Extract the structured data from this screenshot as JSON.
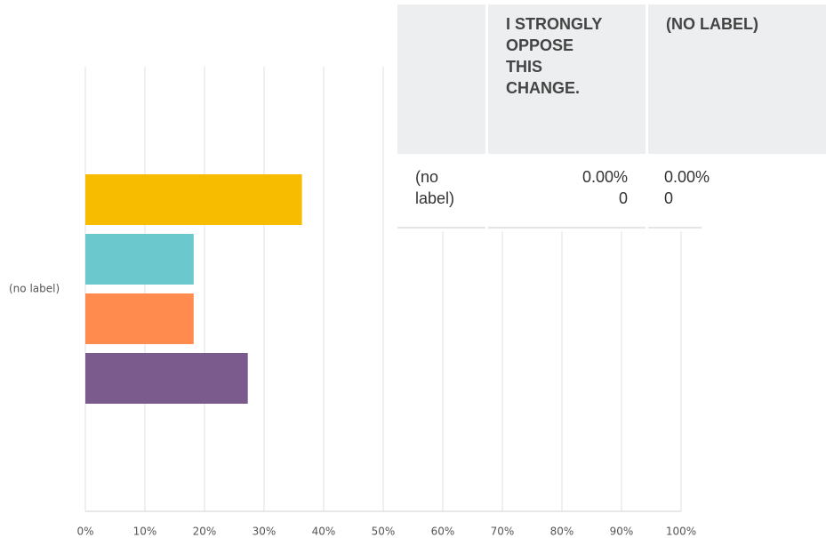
{
  "chart_data": {
    "type": "bar",
    "orientation": "horizontal",
    "categories": [
      "(no label)"
    ],
    "series": [
      {
        "color": "#f7bc00",
        "values": [
          36.36
        ]
      },
      {
        "color": "#6bc8cd",
        "values": [
          18.18
        ]
      },
      {
        "color": "#ff8b4f",
        "values": [
          18.18
        ]
      },
      {
        "color": "#7b5b8d",
        "values": [
          27.27
        ]
      }
    ],
    "xlim": [
      0,
      100
    ],
    "xticks": [
      {
        "value": 0,
        "label": "0%"
      },
      {
        "value": 10,
        "label": "10%"
      },
      {
        "value": 20,
        "label": "20%"
      },
      {
        "value": 30,
        "label": "30%"
      },
      {
        "value": 40,
        "label": "40%"
      },
      {
        "value": 50,
        "label": "50%"
      },
      {
        "value": 60,
        "label": "60%"
      },
      {
        "value": 70,
        "label": "70%"
      },
      {
        "value": 80,
        "label": "80%"
      },
      {
        "value": 90,
        "label": "90%"
      },
      {
        "value": 100,
        "label": "100%"
      }
    ],
    "grid": true
  },
  "table": {
    "columns": [
      "I STRONGLY OPPOSE THIS CHANGE.",
      "(NO LABEL)"
    ],
    "rows": [
      {
        "label": "(no label)",
        "cells": [
          {
            "percent": "0.00%",
            "count": 0
          },
          {
            "percent": "0.00%",
            "count": 0
          }
        ]
      }
    ]
  }
}
